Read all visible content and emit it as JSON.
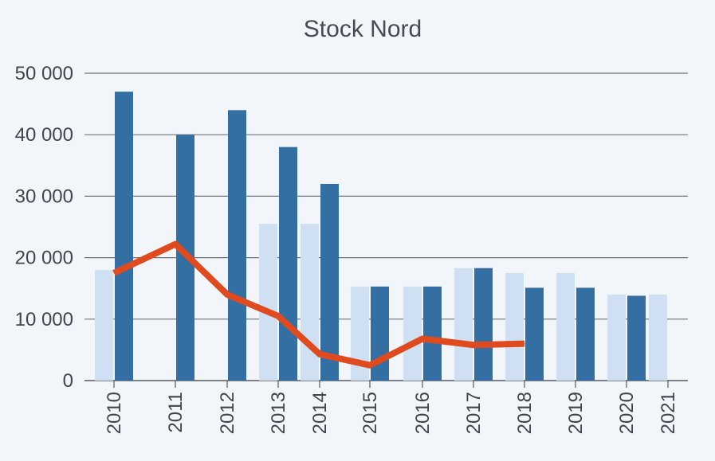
{
  "chart_data": {
    "type": "bar",
    "title": "Stock Nord",
    "xlabel": "",
    "ylabel": "",
    "ylim": [
      0,
      50000
    ],
    "yticks": [
      0,
      10000,
      20000,
      30000,
      40000,
      50000
    ],
    "ytick_labels": [
      "0",
      "10 000",
      "20 000",
      "30 000",
      "40 000",
      "50 000"
    ],
    "grid": true,
    "legend": "none",
    "categories": [
      "2010",
      "2011",
      "2012",
      "2013",
      "2014",
      "2015",
      "2016",
      "2017",
      "2018",
      "2019",
      "2020",
      "2021"
    ],
    "series": [
      {
        "type": "bar",
        "color": "#cfe0f3",
        "values": [
          18000,
          null,
          null,
          25500,
          25500,
          15300,
          15300,
          18300,
          17500,
          17500,
          14000,
          14000
        ]
      },
      {
        "type": "bar",
        "color": "#336fa3",
        "values": [
          47000,
          40000,
          44000,
          38000,
          32000,
          15300,
          15300,
          18300,
          15100,
          15100,
          13800,
          null
        ]
      },
      {
        "type": "line",
        "color": "#e04a1f",
        "values": [
          17500,
          22200,
          14000,
          10500,
          4300,
          2500,
          6800,
          5800,
          6000,
          null,
          null,
          null
        ]
      }
    ]
  }
}
